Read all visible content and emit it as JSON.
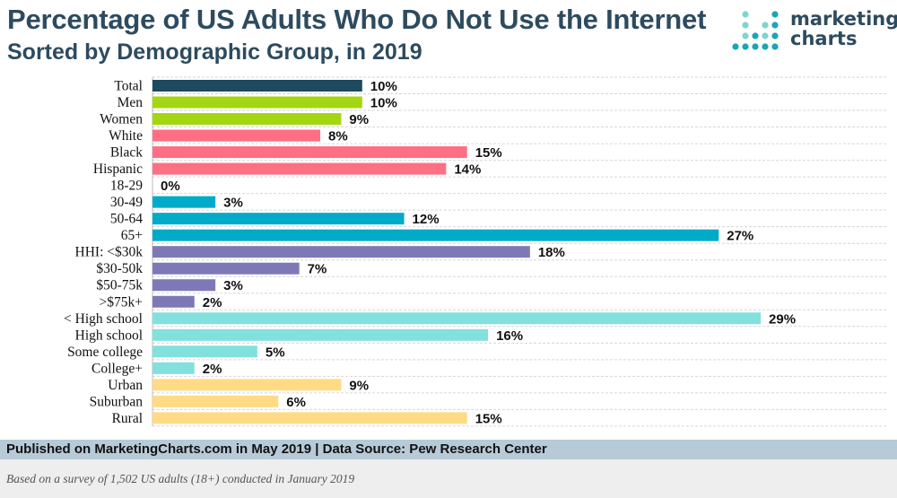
{
  "header": {
    "title": "Percentage of US Adults Who Do Not Use the Internet",
    "subtitle": "Sorted by Demographic Group, in 2019"
  },
  "logo": {
    "line1": "marketing",
    "line2": "charts",
    "dot_colors": [
      "#1aa6b7",
      "#7fd4cf",
      "#2d4b5f"
    ]
  },
  "chart_data": {
    "type": "bar",
    "orientation": "horizontal",
    "categories": [
      "Total",
      "Men",
      "Women",
      "White",
      "Black",
      "Hispanic",
      "18-29",
      "30-49",
      "50-64",
      "65+",
      "HHI: <$30k",
      "$30-50k",
      "$50-75k",
      ">$75k+",
      "< High school",
      "High school",
      "Some college",
      "College+",
      "Urban",
      "Suburban",
      "Rural"
    ],
    "values": [
      10,
      10,
      9,
      8,
      15,
      14,
      0,
      3,
      12,
      27,
      18,
      7,
      3,
      2,
      29,
      16,
      5,
      2,
      9,
      6,
      15
    ],
    "value_labels": [
      "10%",
      "10%",
      "9%",
      "8%",
      "15%",
      "14%",
      "0%",
      "3%",
      "12%",
      "27%",
      "18%",
      "7%",
      "3%",
      "2%",
      "29%",
      "16%",
      "5%",
      "2%",
      "9%",
      "6%",
      "15%"
    ],
    "groups": [
      {
        "color": "#1d4a5e",
        "count": 1
      },
      {
        "color": "#a4d611",
        "count": 2
      },
      {
        "color": "#ff6f83",
        "count": 3
      },
      {
        "color": "#00abc9",
        "count": 4
      },
      {
        "color": "#7e79b6",
        "count": 4
      },
      {
        "color": "#82e0dd",
        "count": 4
      },
      {
        "color": "#ffdb86",
        "count": 3
      }
    ],
    "xlim": [
      0,
      29
    ],
    "grid": true,
    "title": "Percentage of US Adults Who Do Not Use the Internet",
    "subtitle": "Sorted by Demographic Group, in 2019"
  },
  "footer": {
    "published": "Published on MarketingCharts.com in May 2019 | Data Source: Pew Research Center",
    "note": "Based on a survey of 1,502 US adults (18+) conducted in January 2019"
  }
}
